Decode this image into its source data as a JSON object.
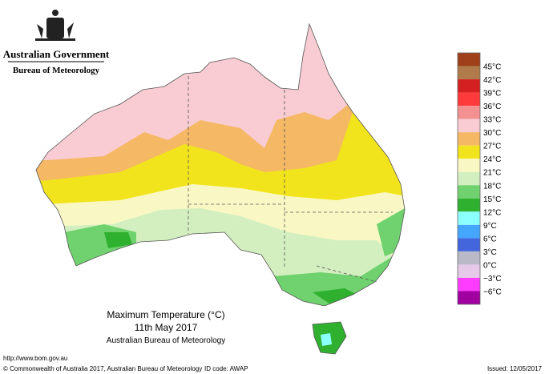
{
  "header": {
    "government": "Australian Government",
    "bureau": "Bureau of Meteorology"
  },
  "legend": {
    "labels": [
      "45°C",
      "42°C",
      "39°C",
      "36°C",
      "33°C",
      "30°C",
      "27°C",
      "24°C",
      "21°C",
      "18°C",
      "15°C",
      "12°C",
      "9°C",
      "6°C",
      "3°C",
      "0°C",
      "−3°C",
      "−6°C"
    ],
    "colors": [
      "#a0401a",
      "#b07a4a",
      "#d42020",
      "#ff3a3a",
      "#f39090",
      "#f8ccd2",
      "#f5b865",
      "#f2e41c",
      "#f9f8c4",
      "#d4efbf",
      "#6fd26f",
      "#2fb02f",
      "#8cffff",
      "#45a6ff",
      "#4466dd",
      "#b9b9c8",
      "#e6c8e8",
      "#ff3cff",
      "#a000a0"
    ]
  },
  "caption": {
    "title": "Maximum Temperature (°C)",
    "date": "11th May 2017",
    "source": "Australian Bureau of Meteorology"
  },
  "footer": {
    "url": "http://www.bom.gov.au",
    "copyright": "© Commonwealth of Australia 2017, Australian Bureau of Meteorology",
    "id_code": "ID code: AWAP",
    "issued": "Issued: 12/05/2017"
  }
}
